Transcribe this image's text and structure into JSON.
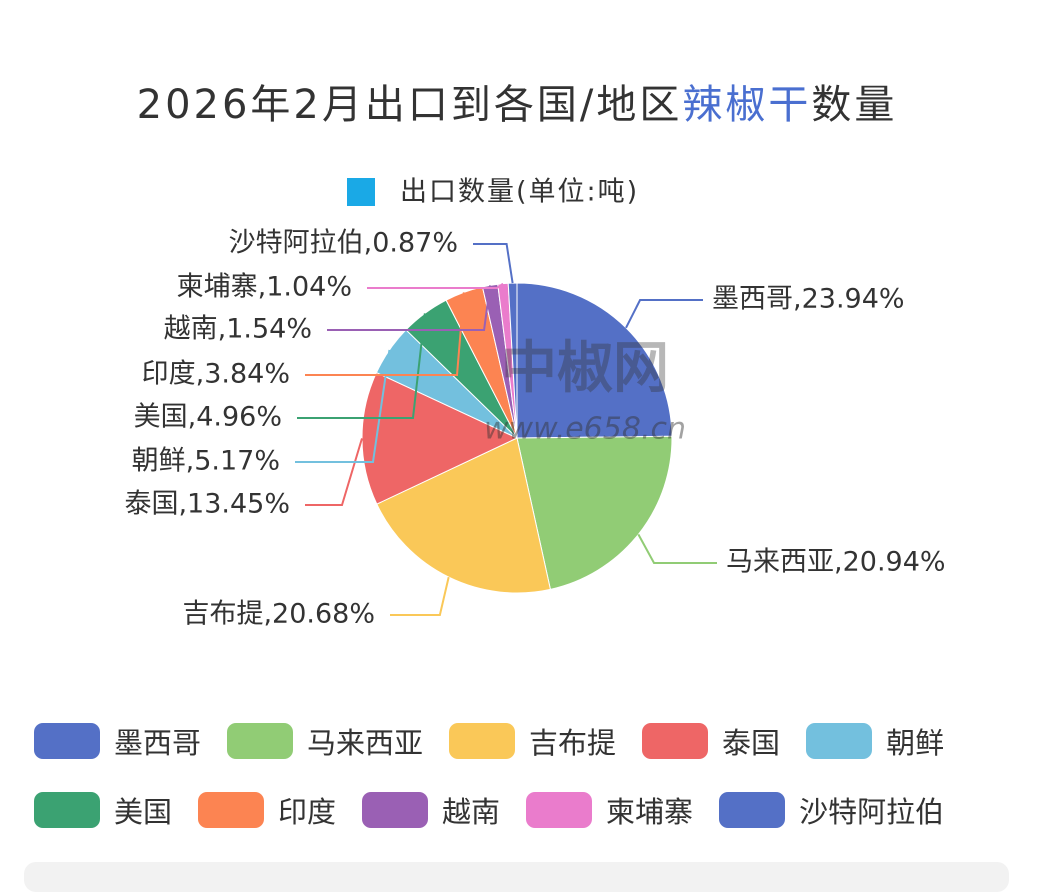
{
  "chart_data": {
    "type": "pie",
    "title": "2026年2月出口到各国/地区",
    "title_highlight": "辣椒干",
    "title_suffix": "数量",
    "series_name": "出口数量(单位:吨)",
    "series_color": "#1aa9e6",
    "watermark": [
      "中椒网",
      "www.e658.cn"
    ],
    "categories": [
      "墨西哥",
      "马来西亚",
      "吉布提",
      "泰国",
      "朝鲜",
      "美国",
      "印度",
      "越南",
      "柬埔寨",
      "沙特阿拉伯"
    ],
    "values": [
      23.94,
      20.94,
      20.68,
      13.45,
      5.17,
      4.96,
      3.84,
      1.54,
      1.04,
      0.87
    ],
    "value_labels": [
      "墨西哥,23.94%",
      "马来西亚,20.94%",
      "吉布提,20.68%",
      "泰国,13.45%",
      "朝鲜,5.17%",
      "美国,4.96%",
      "印度,3.84%",
      "越南,1.54%",
      "柬埔寨,1.04%",
      "沙特阿拉伯,0.87%"
    ],
    "colors": [
      "#5470c6",
      "#91cc75",
      "#fac858",
      "#ee6666",
      "#73c0de",
      "#3ba272",
      "#fc8452",
      "#9a60b4",
      "#ea7ccc",
      "#5470c6"
    ]
  }
}
